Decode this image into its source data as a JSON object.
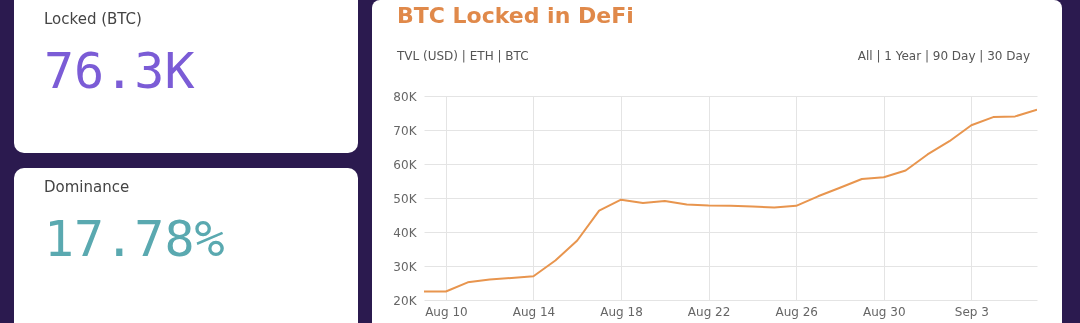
{
  "chart_data": [
    {
      "type": "other",
      "title": "Locked (BTC)",
      "annotations": [
        "76.3K"
      ],
      "color": "#7b5cd6"
    },
    {
      "type": "other",
      "title": "Dominance",
      "annotations": [
        "17.78%"
      ],
      "color": "#5aa9b0"
    },
    {
      "type": "line",
      "title": "BTC Locked in DeFi",
      "annotations": [
        "TVL (USD) | ETH | BTC",
        "All | 1 Year | 90 Day | 30 Day"
      ],
      "x": [
        "--08-09",
        "--08-10",
        "--08-11",
        "--08-12",
        "--08-13",
        "--08-14",
        "--08-15",
        "--08-16",
        "--08-17",
        "--08-18",
        "--08-19",
        "--08-20",
        "--08-21",
        "--08-22",
        "--08-23",
        "--08-24",
        "--08-25",
        "--08-26",
        "--08-27",
        "--08-28",
        "--08-29",
        "--08-30",
        "--08-31",
        "--09-01",
        "--09-02",
        "--09-03",
        "--09-04",
        "--09-05",
        "--09-06"
      ],
      "series": [
        {
          "color": "#e8954e",
          "values": [
            22500,
            22500,
            25200,
            26000,
            26500,
            27000,
            31600,
            37500,
            46300,
            49500,
            48500,
            49100,
            48100,
            47800,
            47700,
            47500,
            47200,
            47700,
            50500,
            53000,
            55600,
            56100,
            58100,
            62800,
            66700,
            71400,
            73800,
            74000,
            76000
          ]
        }
      ],
      "xlim": [
        "--08-09",
        "--09-06"
      ],
      "xticks": [
        {
          "value": "--08-10",
          "label": "Aug 10"
        },
        {
          "value": "--08-14",
          "label": "Aug 14"
        },
        {
          "value": "--08-18",
          "label": "Aug 18"
        },
        {
          "value": "--08-22",
          "label": "Aug 22"
        },
        {
          "value": "--08-26",
          "label": "Aug 26"
        },
        {
          "value": "--08-30",
          "label": "Aug 30"
        },
        {
          "value": "--09-03",
          "label": "Sep 3"
        }
      ],
      "ylim": [
        20000,
        80000
      ],
      "yticks": [
        {
          "value": 20000,
          "label": "20K"
        },
        {
          "value": 30000,
          "label": "30K"
        },
        {
          "value": 40000,
          "label": "40K"
        },
        {
          "value": 50000,
          "label": "50K"
        },
        {
          "value": 60000,
          "label": "60K"
        },
        {
          "value": 70000,
          "label": "70K"
        },
        {
          "value": 80000,
          "label": "80K"
        }
      ],
      "grid": true,
      "legend": false,
      "marker": "none"
    }
  ]
}
